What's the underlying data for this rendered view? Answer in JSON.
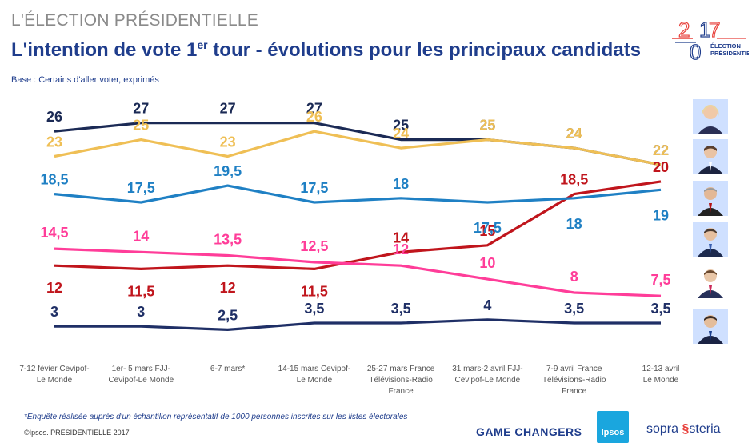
{
  "header": {
    "kicker": "L'ÉLECTION PRÉSIDENTIELLE",
    "title_pre": "L'intention de vote 1",
    "title_sup": "er",
    "title_post": " tour - évolutions pour les principaux candidats",
    "base": "Base : Certains d'aller voter, exprimés"
  },
  "logo": {
    "year_digits": [
      "2",
      "0",
      "1",
      "7"
    ],
    "line1": "ÉLECTION",
    "line2": "PRÉSIDENTIELLE"
  },
  "chart_data": {
    "type": "line",
    "categories": [
      [
        "7-12 févier Cevipof-",
        "Le Monde"
      ],
      [
        "1er- 5 mars FJJ-",
        "Cevipof-Le Monde"
      ],
      [
        "6-7 mars*"
      ],
      [
        "14-15 mars Cevipof-",
        "Le Monde"
      ],
      [
        "25-27 mars France",
        "Télévisions-Radio",
        "France"
      ],
      [
        "31 mars-2 avril FJJ-",
        "Cevipof-Le Monde"
      ],
      [
        "7-9 avril France",
        "Télévisions-Radio",
        "France"
      ],
      [
        "12-13 avril",
        "Le Monde"
      ]
    ],
    "series": [
      {
        "color": "#1b2a55",
        "values": [
          26,
          27,
          27,
          27,
          25,
          25,
          24,
          22
        ],
        "labels": [
          "26",
          "27",
          "27",
          "27",
          "25",
          "25",
          "24",
          "22"
        ]
      },
      {
        "color": "#efbf55",
        "values": [
          23,
          25,
          23,
          26,
          24,
          25,
          24,
          22
        ],
        "labels": [
          "23",
          "25",
          "23",
          "26",
          "24",
          "25",
          "24",
          "22"
        ]
      },
      {
        "color": "#c0151c",
        "values": [
          12,
          11.5,
          12,
          11.5,
          14,
          15,
          18.5,
          20
        ],
        "labels": [
          "12",
          "11,5",
          "12",
          "11,5",
          "14",
          "15",
          "18,5",
          "20"
        ]
      },
      {
        "color": "#1f80c4",
        "values": [
          18.5,
          17.5,
          19.5,
          17.5,
          18,
          17.5,
          18,
          19
        ],
        "labels": [
          "18,5",
          "17,5",
          "19,5",
          "17,5",
          "18",
          "17,5",
          "18",
          "19"
        ]
      },
      {
        "color": "#ff3d99",
        "values": [
          14.5,
          14,
          13.5,
          12.5,
          12,
          10,
          8,
          7.5
        ],
        "labels": [
          "14,5",
          "14",
          "13,5",
          "12,5",
          "12",
          "10",
          "8",
          "7,5"
        ]
      },
      {
        "color": "#1f2f66",
        "values": [
          3,
          3,
          2.5,
          3.5,
          3.5,
          4,
          3.5,
          3.5
        ],
        "labels": [
          "3",
          "3",
          "2,5",
          "3,5",
          "3,5",
          "4",
          "3,5",
          "3,5"
        ]
      }
    ],
    "legend": "right side, candidate photos"
  },
  "footer": {
    "footnote": "*Enquête réalisée auprès d'un échantillon représentatif de 1000 personnes inscrites sur les listes électorales",
    "copyright": "©Ipsos. PRÉSIDENTIELLE 2017",
    "game_changers": "GAME CHANGERS",
    "ipsos": "Ipsos",
    "sopra": "sopra",
    "steria": "steria"
  }
}
